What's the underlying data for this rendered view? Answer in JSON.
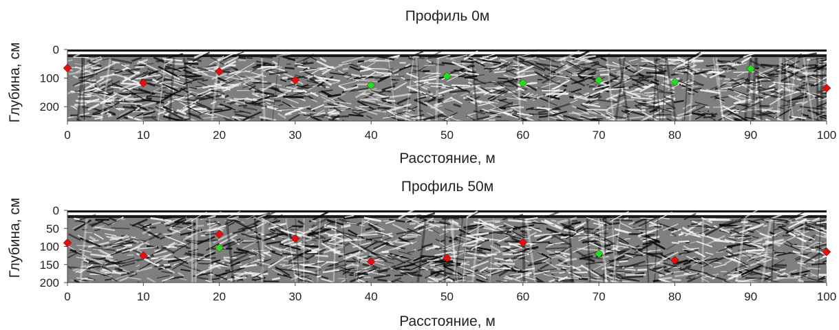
{
  "chart_data": [
    {
      "type": "scatter",
      "title": "Профиль 0м",
      "xlabel": "Расстояние, м",
      "ylabel": "Глубина, см",
      "xlim": [
        0,
        100
      ],
      "ylim": [
        0,
        250
      ],
      "y_inverted": true,
      "x_ticks": [
        0,
        10,
        20,
        30,
        40,
        50,
        60,
        70,
        80,
        90,
        100
      ],
      "y_ticks": [
        0,
        100,
        200
      ],
      "background": "radargram",
      "series": [
        {
          "color": "#e01010",
          "marker": "diamond",
          "x": [
            0,
            10,
            20,
            30,
            100
          ],
          "y": [
            65,
            117,
            77,
            107,
            135
          ]
        },
        {
          "color": "#22dd22",
          "marker": "diamond",
          "x": [
            40,
            50,
            60,
            70,
            80,
            90
          ],
          "y": [
            125,
            93,
            117,
            107,
            113,
            67
          ]
        }
      ]
    },
    {
      "type": "scatter",
      "title": "Профиль 50м",
      "xlabel": "Расстояние, м",
      "ylabel": "Глубина, см",
      "xlim": [
        0,
        100
      ],
      "ylim": [
        0,
        200
      ],
      "y_inverted": true,
      "x_ticks": [
        0,
        10,
        20,
        30,
        40,
        50,
        60,
        70,
        80,
        90,
        100
      ],
      "y_ticks": [
        0,
        50,
        100,
        150,
        200
      ],
      "background": "radargram",
      "series": [
        {
          "color": "#e01010",
          "marker": "diamond",
          "x": [
            0,
            10,
            20,
            30,
            40,
            50,
            60,
            80,
            100
          ],
          "y": [
            90,
            125,
            66,
            78,
            142,
            132,
            89,
            138,
            115
          ]
        },
        {
          "color": "#22dd22",
          "marker": "diamond",
          "x": [
            20,
            70
          ],
          "y": [
            104,
            120
          ]
        }
      ]
    }
  ]
}
